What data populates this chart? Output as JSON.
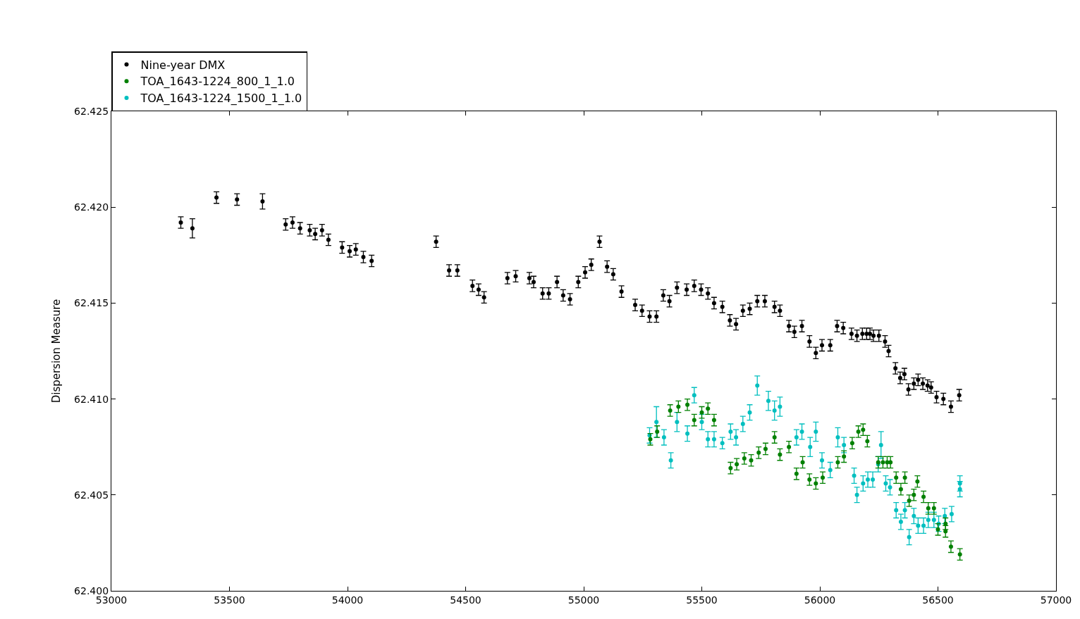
{
  "chart_data": {
    "type": "scatter",
    "ylabel": "Dispersion Measure",
    "legend": "top left",
    "marker": "circle",
    "xlim": [
      53000,
      57000
    ],
    "xticks": [
      53000,
      53500,
      54000,
      54500,
      55000,
      55500,
      56000,
      56500,
      57000
    ],
    "ylim": [
      62.4,
      62.425
    ],
    "yticks": [
      {
        "value": 62.4,
        "label": "62.400"
      },
      {
        "value": 62.405,
        "label": "62.405"
      },
      {
        "value": 62.41,
        "label": "62.410"
      },
      {
        "value": 62.415,
        "label": "62.415"
      },
      {
        "value": 62.42,
        "label": "62.420"
      },
      {
        "value": 62.425,
        "label": "62.425"
      }
    ],
    "series": [
      {
        "name": "Nine-year DMX",
        "color": "#000000",
        "x": [
          53294,
          53343,
          53445,
          53532,
          53640,
          53738,
          53767,
          53799,
          53840,
          53863,
          53892,
          53919,
          53977,
          54009,
          54035,
          54067,
          54102,
          54375,
          54430,
          54465,
          54529,
          54555,
          54578,
          54677,
          54712,
          54770,
          54788,
          54826,
          54852,
          54887,
          54913,
          54942,
          54977,
          55006,
          55032,
          55067,
          55099,
          55125,
          55160,
          55218,
          55247,
          55279,
          55308,
          55337,
          55363,
          55395,
          55436,
          55468,
          55497,
          55526,
          55552,
          55587,
          55619,
          55645,
          55674,
          55703,
          55735,
          55767,
          55808,
          55831,
          55869,
          55892,
          55924,
          55956,
          55983,
          56009,
          56044,
          56073,
          56099,
          56134,
          56157,
          56180,
          56198,
          56212,
          56227,
          56250,
          56276,
          56291,
          56320,
          56340,
          56358,
          56375,
          56398,
          56416,
          56436,
          56456,
          56471,
          56494,
          56523,
          56555,
          56590
        ],
        "values": [
          62.4192,
          62.4189,
          62.4205,
          62.4204,
          62.4203,
          62.4191,
          62.4192,
          62.4189,
          62.4188,
          62.4186,
          62.4188,
          62.4183,
          62.4179,
          62.4177,
          62.4178,
          62.4174,
          62.4172,
          62.4182,
          62.4167,
          62.4167,
          62.4159,
          62.4157,
          62.4153,
          62.4163,
          62.4164,
          62.4163,
          62.4161,
          62.4155,
          62.4155,
          62.4161,
          62.4154,
          62.4152,
          62.4161,
          62.4166,
          62.417,
          62.4182,
          62.4169,
          62.4165,
          62.4156,
          62.4149,
          62.4146,
          62.4143,
          62.4143,
          62.4154,
          62.4151,
          62.4158,
          62.4157,
          62.4159,
          62.4157,
          62.4155,
          62.415,
          62.4148,
          62.4141,
          62.4139,
          62.4146,
          62.4147,
          62.4151,
          62.4151,
          62.4148,
          62.4146,
          62.4138,
          62.4135,
          62.4138,
          62.413,
          62.4124,
          62.4128,
          62.4128,
          62.4138,
          62.4137,
          62.4134,
          62.4133,
          62.4134,
          62.4134,
          62.4134,
          62.4133,
          62.4133,
          62.413,
          62.4125,
          62.4116,
          62.4111,
          62.4113,
          62.4105,
          62.4108,
          62.411,
          62.4108,
          62.4107,
          62.4106,
          62.4101,
          62.41,
          62.4096,
          62.4102
        ],
        "errors": [
          0.0003,
          0.0005,
          0.0003,
          0.0003,
          0.0004,
          0.0003,
          0.0003,
          0.0003,
          0.0003,
          0.0003,
          0.0003,
          0.0003,
          0.0003,
          0.0003,
          0.0003,
          0.0003,
          0.0003,
          0.0003,
          0.0003,
          0.0003,
          0.0003,
          0.0003,
          0.0003,
          0.0003,
          0.0003,
          0.0003,
          0.0003,
          0.0003,
          0.0003,
          0.0003,
          0.0003,
          0.0003,
          0.0003,
          0.0003,
          0.0003,
          0.0003,
          0.0003,
          0.0003,
          0.0003,
          0.0003,
          0.0003,
          0.0003,
          0.0003,
          0.0003,
          0.0003,
          0.0003,
          0.0003,
          0.0003,
          0.0003,
          0.0003,
          0.0003,
          0.0003,
          0.0003,
          0.0003,
          0.0003,
          0.0003,
          0.0003,
          0.0003,
          0.0003,
          0.0003,
          0.0003,
          0.0003,
          0.0003,
          0.0003,
          0.0003,
          0.0003,
          0.0003,
          0.0003,
          0.0003,
          0.0003,
          0.0003,
          0.0003,
          0.0003,
          0.0003,
          0.0003,
          0.0003,
          0.0003,
          0.0003,
          0.0003,
          0.0003,
          0.0003,
          0.0003,
          0.0003,
          0.0003,
          0.0003,
          0.0003,
          0.0003,
          0.0003,
          0.0003,
          0.0003,
          0.0003
        ]
      },
      {
        "name": "TOA_1643-1224_800_1_1.0",
        "color": "#008000",
        "x": [
          55282,
          55311,
          55366,
          55401,
          55439,
          55468,
          55500,
          55526,
          55552,
          55622,
          55648,
          55680,
          55709,
          55741,
          55770,
          55808,
          55831,
          55869,
          55901,
          55927,
          55956,
          55983,
          56012,
          56076,
          56102,
          56137,
          56163,
          56183,
          56201,
          56247,
          56267,
          56285,
          56299,
          56323,
          56343,
          56360,
          56378,
          56398,
          56413,
          56439,
          56459,
          56483,
          56500,
          56532,
          56532,
          56555,
          56593
        ],
        "values": [
          62.4079,
          62.4083,
          62.4094,
          62.4096,
          62.4097,
          62.4089,
          62.4093,
          62.4095,
          62.4089,
          62.4064,
          62.4066,
          62.4069,
          62.4068,
          62.4072,
          62.4074,
          62.408,
          62.4071,
          62.4075,
          62.4061,
          62.4067,
          62.4058,
          62.4056,
          62.4059,
          62.4067,
          62.407,
          62.4077,
          62.4083,
          62.4084,
          62.4078,
          62.4067,
          62.4067,
          62.4067,
          62.4067,
          62.4059,
          62.4053,
          62.4059,
          62.4047,
          62.405,
          62.4057,
          62.4049,
          62.4043,
          62.4043,
          62.4032,
          62.4035,
          62.4031,
          62.4023,
          62.4019
        ],
        "errors": [
          0.0003,
          0.0003,
          0.0003,
          0.0003,
          0.0003,
          0.0003,
          0.0003,
          0.0003,
          0.0003,
          0.0003,
          0.0003,
          0.0003,
          0.0003,
          0.0003,
          0.0003,
          0.0003,
          0.0003,
          0.0003,
          0.0003,
          0.0003,
          0.0003,
          0.0003,
          0.0003,
          0.0003,
          0.0003,
          0.0003,
          0.0003,
          0.0003,
          0.0003,
          0.0003,
          0.0003,
          0.0003,
          0.0003,
          0.0003,
          0.0003,
          0.0003,
          0.0003,
          0.0003,
          0.0003,
          0.0003,
          0.0003,
          0.0003,
          0.0003,
          0.0003,
          0.0003,
          0.0003,
          0.0003
        ]
      },
      {
        "name": "TOA_1643-1224_1500_1_1.0",
        "color": "#00bfbf",
        "x": [
          55279,
          55308,
          55340,
          55369,
          55395,
          55439,
          55468,
          55500,
          55526,
          55552,
          55587,
          55622,
          55645,
          55674,
          55703,
          55735,
          55782,
          55808,
          55831,
          55901,
          55924,
          55959,
          55983,
          56009,
          56044,
          56076,
          56102,
          56145,
          56157,
          56183,
          56203,
          56224,
          56247,
          56259,
          56279,
          56297,
          56323,
          56343,
          56360,
          56378,
          56398,
          56416,
          56439,
          56459,
          56483,
          56503,
          56529,
          56558,
          56593,
          56593
        ],
        "values": [
          62.4081,
          62.4088,
          62.408,
          62.4068,
          62.4088,
          62.4082,
          62.4102,
          62.4088,
          62.4079,
          62.4079,
          62.4077,
          62.4083,
          62.408,
          62.4087,
          62.4093,
          62.4107,
          62.4099,
          62.4094,
          62.4096,
          62.408,
          62.4083,
          62.4075,
          62.4083,
          62.4068,
          62.4063,
          62.408,
          62.4076,
          62.406,
          62.405,
          62.4056,
          62.4058,
          62.4058,
          62.4066,
          62.4076,
          62.4056,
          62.4054,
          62.4042,
          62.4036,
          62.4042,
          62.4028,
          62.4039,
          62.4034,
          62.4034,
          62.4037,
          62.4037,
          62.4035,
          62.4039,
          62.404,
          62.4056,
          62.4053
        ],
        "errors": [
          0.0004,
          0.0008,
          0.0004,
          0.0004,
          0.0005,
          0.0004,
          0.0004,
          0.0004,
          0.0004,
          0.0004,
          0.0003,
          0.0004,
          0.0004,
          0.0004,
          0.0004,
          0.0005,
          0.0005,
          0.0005,
          0.0005,
          0.0004,
          0.0004,
          0.0005,
          0.0005,
          0.0004,
          0.0004,
          0.0005,
          0.0004,
          0.0004,
          0.0004,
          0.0004,
          0.0004,
          0.0004,
          0.0004,
          0.0007,
          0.0004,
          0.0004,
          0.0004,
          0.0004,
          0.0004,
          0.0004,
          0.0004,
          0.0004,
          0.0004,
          0.0004,
          0.0004,
          0.0004,
          0.0004,
          0.0004,
          0.0004,
          0.0004
        ]
      }
    ]
  }
}
